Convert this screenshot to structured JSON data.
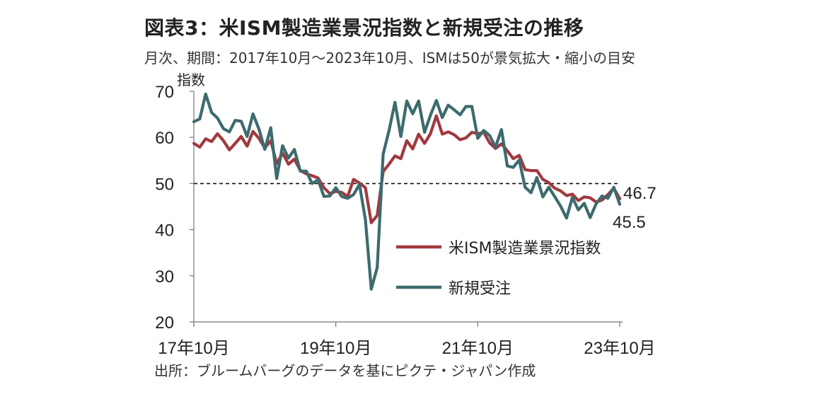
{
  "title": "図表3：米ISM製造業景況指数と新規受注の推移",
  "subtitle": "月次、期間：2017年10月～2023年10月、ISMは50が景気拡大・縮小の目安",
  "source": "出所：ブルームバーグのデータを基にピクテ・ジャパン作成",
  "chart_data": {
    "type": "line",
    "ylabel": "指数",
    "ylim": [
      20,
      70
    ],
    "yticks": [
      20,
      30,
      40,
      50,
      60,
      70
    ],
    "xtick_labels": [
      "17年10月",
      "19年10月",
      "21年10月",
      "23年10月"
    ],
    "reference_line": 50,
    "grid": false,
    "legend_position": "inside-right",
    "x": [
      "2017-10",
      "2017-11",
      "2017-12",
      "2018-01",
      "2018-02",
      "2018-03",
      "2018-04",
      "2018-05",
      "2018-06",
      "2018-07",
      "2018-08",
      "2018-09",
      "2018-10",
      "2018-11",
      "2018-12",
      "2019-01",
      "2019-02",
      "2019-03",
      "2019-04",
      "2019-05",
      "2019-06",
      "2019-07",
      "2019-08",
      "2019-09",
      "2019-10",
      "2019-11",
      "2019-12",
      "2020-01",
      "2020-02",
      "2020-03",
      "2020-04",
      "2020-05",
      "2020-06",
      "2020-07",
      "2020-08",
      "2020-09",
      "2020-10",
      "2020-11",
      "2020-12",
      "2021-01",
      "2021-02",
      "2021-03",
      "2021-04",
      "2021-05",
      "2021-06",
      "2021-07",
      "2021-08",
      "2021-09",
      "2021-10",
      "2021-11",
      "2021-12",
      "2022-01",
      "2022-02",
      "2022-03",
      "2022-04",
      "2022-05",
      "2022-06",
      "2022-07",
      "2022-08",
      "2022-09",
      "2022-10",
      "2022-11",
      "2022-12",
      "2023-01",
      "2023-02",
      "2023-03",
      "2023-04",
      "2023-05",
      "2023-06",
      "2023-07",
      "2023-08",
      "2023-09",
      "2023-10"
    ],
    "series": [
      {
        "name": "米ISM製造業景況指数",
        "color": "#a0393e",
        "values": [
          58.7,
          57.9,
          59.7,
          59.1,
          60.8,
          59.3,
          57.3,
          58.7,
          60.2,
          58.1,
          61.3,
          59.8,
          57.7,
          59.3,
          54.3,
          56.6,
          54.2,
          55.3,
          52.8,
          52.1,
          51.7,
          51.2,
          49.1,
          47.8,
          48.3,
          48.1,
          47.2,
          50.9,
          50.1,
          49.1,
          41.5,
          43.1,
          52.6,
          54.2,
          56.0,
          55.4,
          59.3,
          57.5,
          60.7,
          58.7,
          60.8,
          64.7,
          60.7,
          61.2,
          60.6,
          59.5,
          59.9,
          61.1,
          60.8,
          61.1,
          58.8,
          57.6,
          58.6,
          57.1,
          55.4,
          56.1,
          53.0,
          52.8,
          52.8,
          50.9,
          50.2,
          49.0,
          48.4,
          47.4,
          47.7,
          46.3,
          47.1,
          46.9,
          46.0,
          46.4,
          47.6,
          49.0,
          46.7
        ],
        "end_label": "46.7"
      },
      {
        "name": "新規受注",
        "color": "#3d6b6e",
        "values": [
          63.4,
          64.0,
          69.4,
          65.4,
          64.2,
          61.9,
          61.2,
          63.7,
          63.5,
          60.2,
          65.1,
          61.8,
          57.4,
          62.1,
          51.1,
          58.2,
          55.5,
          57.4,
          52.7,
          52.7,
          50.0,
          50.8,
          47.2,
          47.3,
          49.1,
          47.2,
          46.8,
          47.6,
          49.8,
          42.2,
          27.1,
          31.8,
          56.4,
          61.5,
          67.6,
          60.2,
          67.9,
          65.1,
          67.9,
          61.1,
          64.8,
          68.0,
          64.3,
          67.0,
          66.0,
          64.9,
          66.7,
          66.7,
          59.8,
          61.5,
          60.4,
          57.9,
          61.7,
          53.8,
          53.5,
          55.1,
          49.2,
          48.0,
          51.3,
          47.1,
          49.2,
          47.2,
          45.1,
          42.5,
          47.0,
          44.3,
          45.7,
          42.6,
          45.6,
          47.3,
          46.8,
          49.2,
          45.5
        ],
        "end_label": "45.5"
      }
    ]
  }
}
